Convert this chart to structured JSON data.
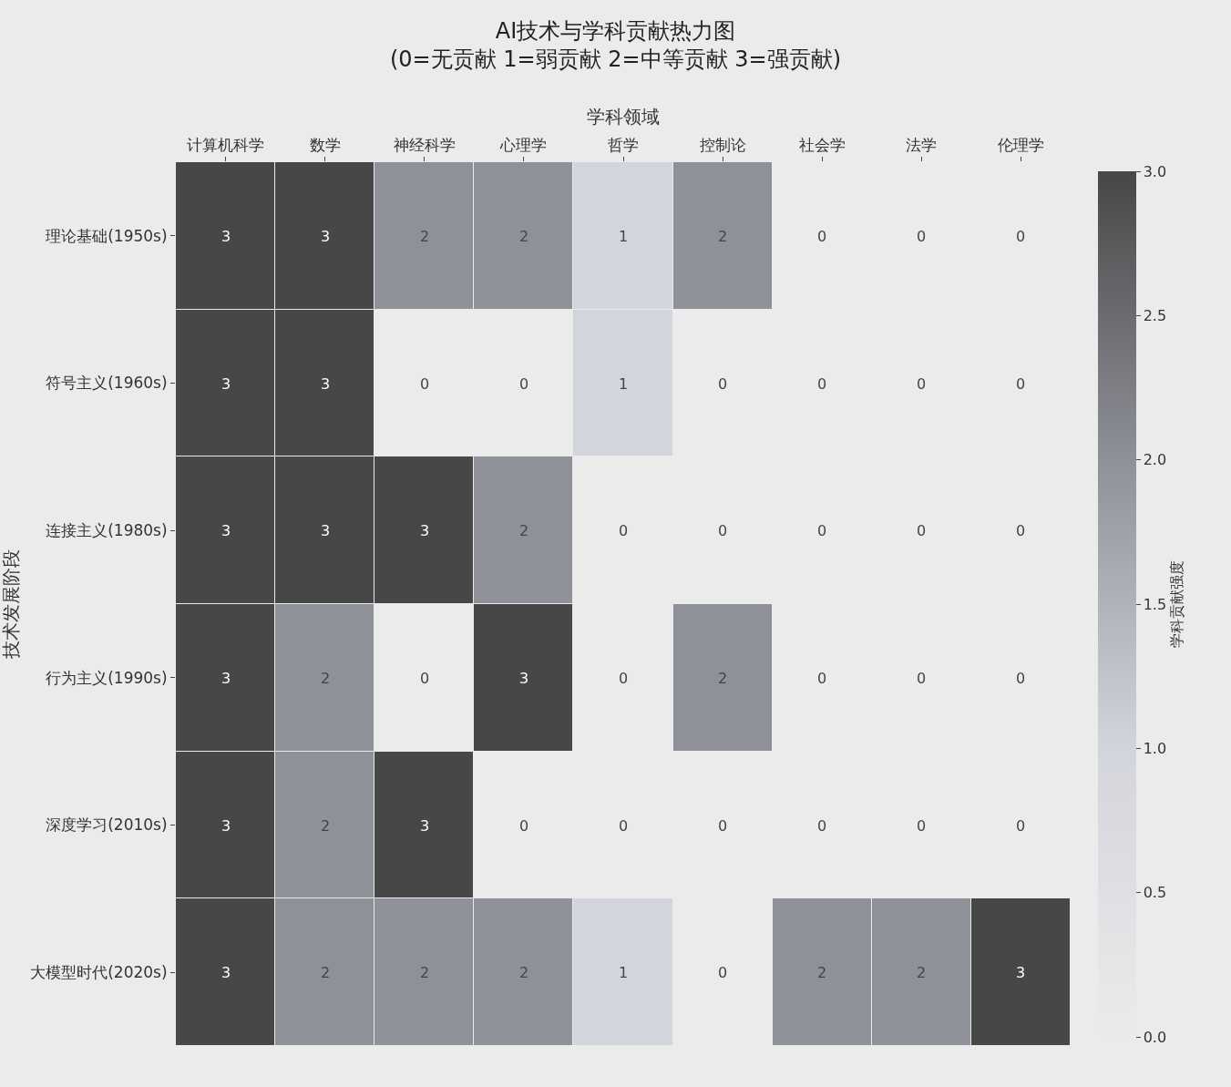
{
  "chart_data": {
    "type": "heatmap",
    "title": "AI技术与学科贡献热力图\n(0=无贡献 1=弱贡献 2=中等贡献 3=强贡献)",
    "xlabel": "学科领域",
    "ylabel": "技术发展阶段",
    "clabel": "学科贡献强度",
    "categories": [
      "计算机科学",
      "数学",
      "神经科学",
      "心理学",
      "哲学",
      "控制论",
      "社会学",
      "法学",
      "伦理学"
    ],
    "y_categories": [
      "理论基础(1950s)",
      "符号主义(1960s)",
      "连接主义(1980s)",
      "行为主义(1990s)",
      "深度学习(2010s)",
      "大模型时代(2020s)"
    ],
    "cells": [
      [
        3,
        3,
        2,
        2,
        1,
        2,
        0,
        0,
        0
      ],
      [
        3,
        3,
        0,
        0,
        1,
        0,
        0,
        0,
        0
      ],
      [
        3,
        3,
        3,
        2,
        0,
        0,
        0,
        0,
        0
      ],
      [
        3,
        2,
        0,
        3,
        0,
        2,
        0,
        0,
        0
      ],
      [
        3,
        2,
        3,
        0,
        0,
        0,
        0,
        0,
        0
      ],
      [
        3,
        2,
        2,
        2,
        1,
        0,
        2,
        2,
        3
      ]
    ],
    "clim": [
      0,
      3
    ],
    "cticks": [
      {
        "value": 0,
        "label": "0.0"
      },
      {
        "value": 0.5,
        "label": "0.5"
      },
      {
        "value": 1,
        "label": "1.0"
      },
      {
        "value": 1.5,
        "label": "1.5"
      },
      {
        "value": 2,
        "label": "2.0"
      },
      {
        "value": 2.5,
        "label": "2.5"
      },
      {
        "value": 3,
        "label": "3.0"
      }
    ],
    "data_labels": true
  }
}
